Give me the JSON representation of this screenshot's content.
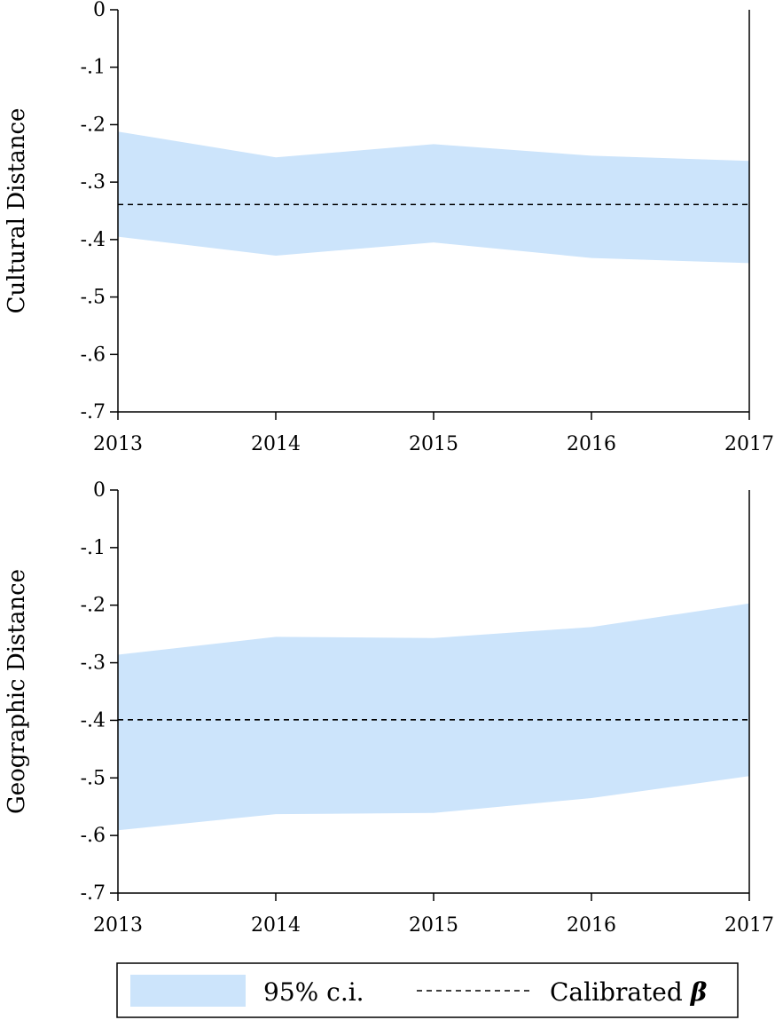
{
  "chart_data": [
    {
      "type": "area",
      "ylabel": "Cultural Distance",
      "x": [
        2013,
        2014,
        2015,
        2016,
        2017
      ],
      "ylim": [
        -0.7,
        0
      ],
      "yticks": [
        "0",
        "-.1",
        "-.2",
        "-.3",
        "-.4",
        "-.5",
        "-.6",
        "-.7"
      ],
      "yticks_values": [
        0,
        -0.1,
        -0.2,
        -0.3,
        -0.4,
        -0.5,
        -0.6,
        -0.7
      ],
      "xticks": [
        "2013",
        "2014",
        "2015",
        "2016",
        "2017"
      ],
      "ci_upper": [
        -0.212,
        -0.257,
        -0.234,
        -0.254,
        -0.263
      ],
      "ci_lower": [
        -0.395,
        -0.428,
        -0.405,
        -0.432,
        -0.441
      ],
      "calibrated_beta": -0.339,
      "grid": false
    },
    {
      "type": "area",
      "ylabel": "Geographic Distance",
      "x": [
        2013,
        2014,
        2015,
        2016,
        2017
      ],
      "ylim": [
        -0.7,
        0
      ],
      "yticks": [
        "0",
        "-.1",
        "-.2",
        "-.3",
        "-.4",
        "-.5",
        "-.6",
        "-.7"
      ],
      "yticks_values": [
        0,
        -0.1,
        -0.2,
        -0.3,
        -0.4,
        -0.5,
        -0.6,
        -0.7
      ],
      "xticks": [
        "2013",
        "2014",
        "2015",
        "2016",
        "2017"
      ],
      "ci_upper": [
        -0.286,
        -0.255,
        -0.257,
        -0.238,
        -0.197
      ],
      "ci_lower": [
        -0.591,
        -0.563,
        -0.561,
        -0.535,
        -0.497
      ],
      "calibrated_beta": -0.399,
      "grid": false
    }
  ],
  "legend": {
    "placement": "bottom",
    "ci_label": "95% c.i.",
    "beta_label": "Calibrated",
    "beta_symbol": "β"
  },
  "colors": {
    "ci_fill": "#cce4fb",
    "beta_line": "#000000",
    "axis": "#000000"
  }
}
